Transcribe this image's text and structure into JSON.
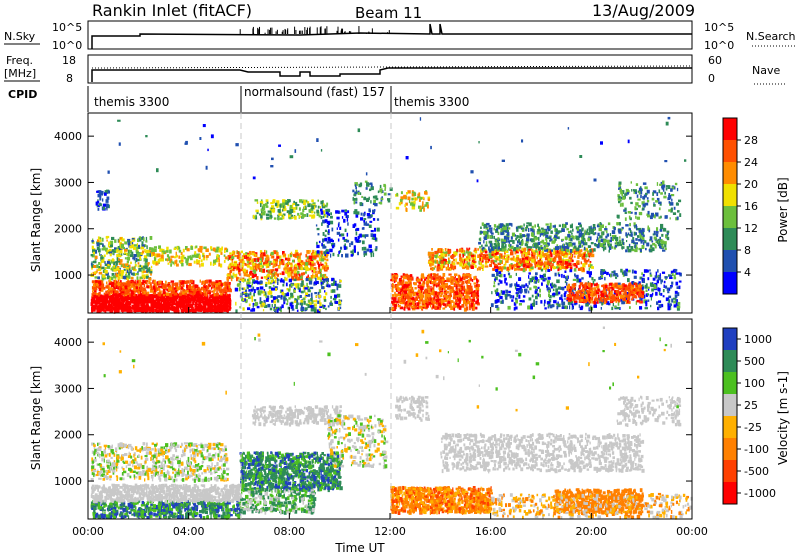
{
  "header": {
    "station": "Rankin Inlet (fitACF)",
    "beam": "Beam 11",
    "date": "13/Aug/2009"
  },
  "strips": {
    "nsky_label": "N.Sky",
    "nsky_ticks": [
      "10^5",
      "10^0"
    ],
    "nsearch_label": "N.Search",
    "nsearch_ticks": [
      "10^5",
      "10^0"
    ],
    "freq_label": "Freq.",
    "freq_unit": "[MHz]",
    "freq_ticks": [
      "18",
      "8"
    ],
    "nave_label": "Nave",
    "nave_ticks": [
      "60",
      "0"
    ],
    "cpid_label": "CPID",
    "cpid_segments": [
      {
        "label": "themis 3300",
        "start_h": 0,
        "end_h": 6
      },
      {
        "label": "normalsound (fast) 157",
        "start_h": 6,
        "end_h": 12
      },
      {
        "label": "themis 3300",
        "start_h": 12,
        "end_h": 24
      }
    ]
  },
  "power_panel": {
    "ylabel": "Slant Range [km]",
    "yticks": [
      "1000",
      "2000",
      "3000",
      "4000"
    ],
    "colorbar_label": "Power [dB]",
    "colorbar_ticks": [
      "4",
      "8",
      "12",
      "16",
      "20",
      "24",
      "28"
    ],
    "colors": [
      "#0000ff",
      "#2050b0",
      "#2e8b57",
      "#6cbf3c",
      "#f0e000",
      "#ff8c00",
      "#ff5000",
      "#ff0000"
    ]
  },
  "velocity_panel": {
    "ylabel": "Slant Range [km]",
    "yticks": [
      "1000",
      "2000",
      "3000",
      "4000"
    ],
    "colorbar_label": "Velocity [m s-1]",
    "colorbar_ticks": [
      "1000",
      "500",
      "100",
      "25",
      "-25",
      "-100",
      "-500",
      "-1000"
    ],
    "colors": [
      "#2040c0",
      "#2e8b57",
      "#4cc020",
      "#c8c8c8",
      "#ffb000",
      "#ff8000",
      "#ff4000",
      "#ff0000"
    ]
  },
  "x_axis": {
    "label": "Time UT",
    "ticks": [
      "00:00",
      "04:00",
      "08:00",
      "12:00",
      "16:00",
      "20:00",
      "00:00"
    ]
  },
  "chart_data": [
    {
      "type": "heatmap",
      "title": "Rankin Inlet (fitACF) Beam 11 13/Aug/2009 - Power",
      "xlabel": "Time UT",
      "ylabel": "Slant Range [km]",
      "xlim": [
        0,
        24
      ],
      "ylim": [
        180,
        4500
      ],
      "zlabel": "Power [dB]",
      "zlim": [
        0,
        32
      ],
      "cells": [
        {
          "t": [
            0,
            5.5
          ],
          "r": [
            200,
            800
          ],
          "z": 28
        },
        {
          "t": [
            0,
            5.5
          ],
          "r": [
            900,
            1700
          ],
          "z": 16
        },
        {
          "t": [
            6,
            9
          ],
          "r": [
            900,
            1400
          ],
          "z": 24
        },
        {
          "t": [
            6.5,
            9.5
          ],
          "r": [
            2300,
            2500
          ],
          "z": 12
        },
        {
          "t": [
            12,
            15.5
          ],
          "r": [
            300,
            1000
          ],
          "z": 24
        },
        {
          "t": [
            13.5,
            20
          ],
          "r": [
            1100,
            1500
          ],
          "z": 20
        },
        {
          "t": [
            16,
            23
          ],
          "r": [
            1500,
            2000
          ],
          "z": 12
        },
        {
          "t": [
            19,
            22
          ],
          "r": [
            400,
            800
          ],
          "z": 24
        }
      ]
    },
    {
      "type": "heatmap",
      "title": "Rankin Inlet (fitACF) Beam 11 13/Aug/2009 - Velocity",
      "xlabel": "Time UT",
      "ylabel": "Slant Range [km]",
      "xlim": [
        0,
        24
      ],
      "ylim": [
        180,
        4500
      ],
      "zlabel": "Velocity [m s-1]",
      "zlim": [
        -1000,
        1000
      ],
      "cells": [
        {
          "t": [
            0,
            6
          ],
          "r": [
            200,
            900
          ],
          "z": 0
        },
        {
          "t": [
            0,
            6
          ],
          "r": [
            1000,
            1800
          ],
          "z": 0
        },
        {
          "t": [
            6,
            10
          ],
          "r": [
            800,
            1600
          ],
          "z": 300
        },
        {
          "t": [
            7,
            10
          ],
          "r": [
            2300,
            2500
          ],
          "z": 0
        },
        {
          "t": [
            12,
            16
          ],
          "r": [
            300,
            800
          ],
          "z": -300
        },
        {
          "t": [
            14,
            22
          ],
          "r": [
            1200,
            2000
          ],
          "z": 0
        },
        {
          "t": [
            19,
            22
          ],
          "r": [
            300,
            800
          ],
          "z": -300
        }
      ]
    }
  ]
}
